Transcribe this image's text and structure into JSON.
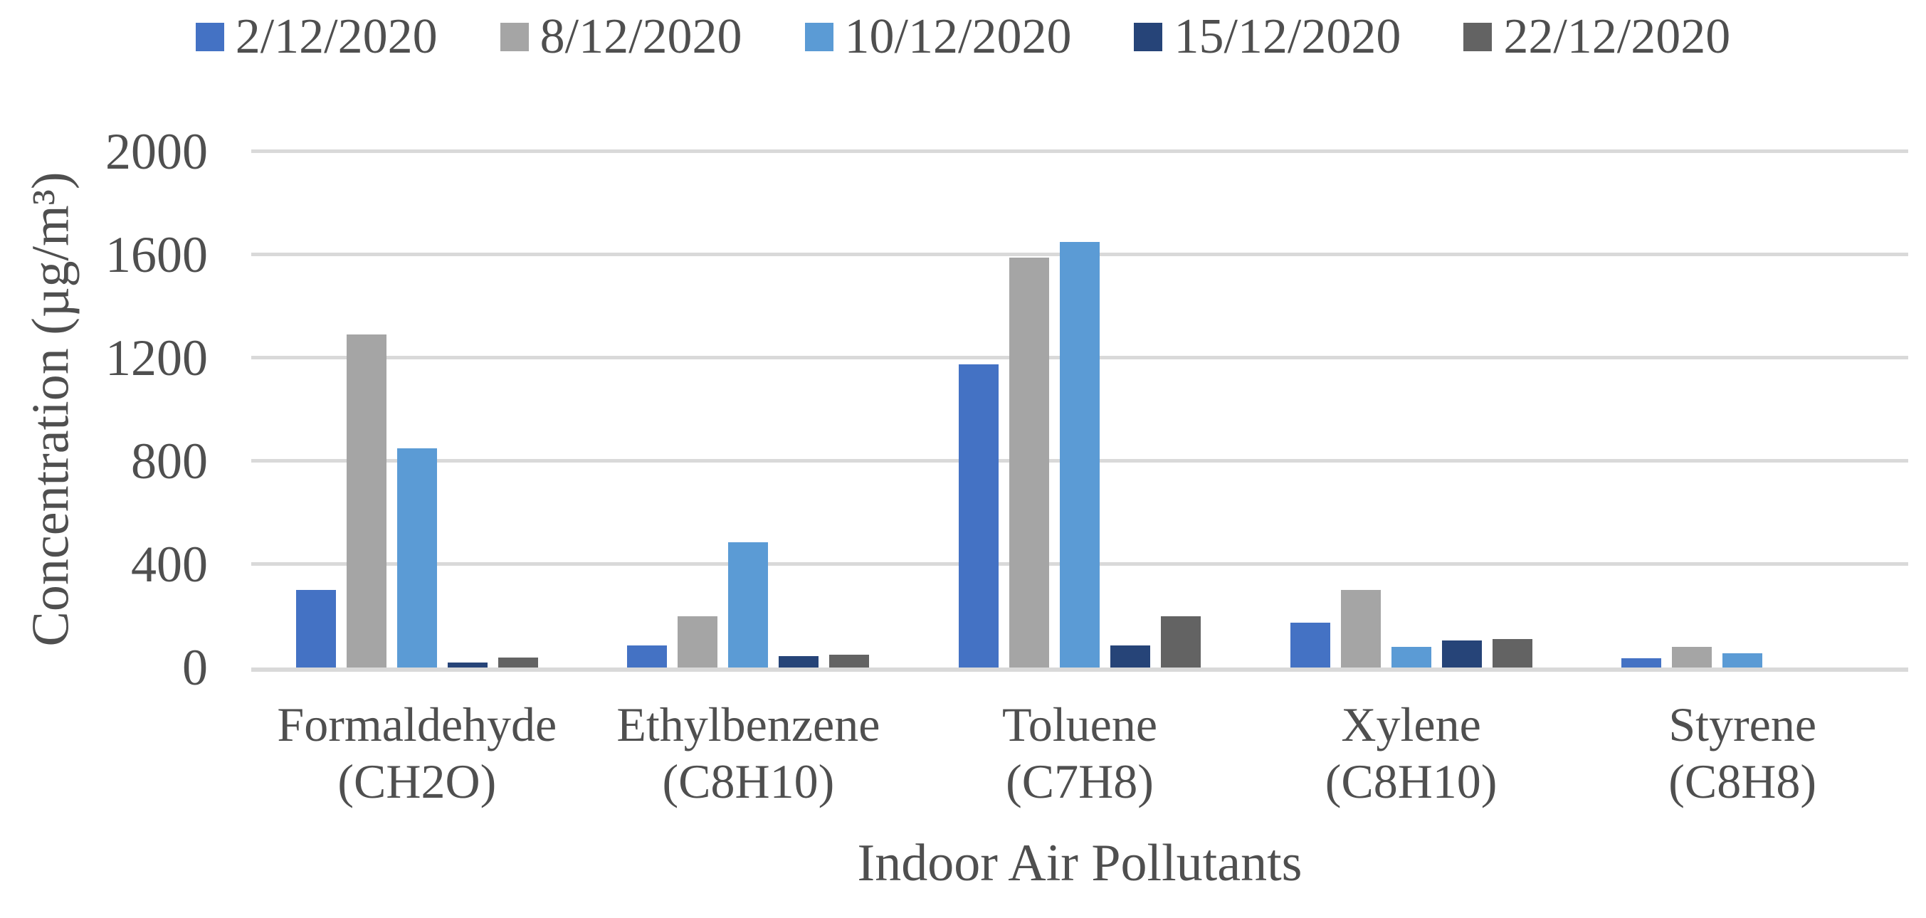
{
  "chart_data": {
    "type": "bar",
    "title": "",
    "xlabel": "Indoor Air Pollutants",
    "ylabel": "Concentration (µg/m³)",
    "ylim": [
      0,
      2000
    ],
    "yticks": [
      0,
      400,
      800,
      1200,
      1600,
      2000
    ],
    "grid": true,
    "legend_position": "top",
    "gridline_color": "#D9D9D9",
    "text_color": "#4f4f4f",
    "categories": [
      "Formaldehyde (CH2O)",
      "Ethylbenzene (C8H10)",
      "Toluene (C7H8)",
      "Xylene (C8H10)",
      "Styrene (C8H8)"
    ],
    "category_lines": [
      {
        "line1": "Formaldehyde",
        "line2": "(CH2O)"
      },
      {
        "line1": "Ethylbenzene",
        "line2": "(C8H10)"
      },
      {
        "line1": "Toluene",
        "line2": "(C7H8)"
      },
      {
        "line1": "Xylene",
        "line2": "(C8H10)"
      },
      {
        "line1": "Styrene",
        "line2": "(C8H8)"
      }
    ],
    "series": [
      {
        "name": "2/12/2020",
        "color": "#4472C4",
        "values": [
          300,
          85,
          1175,
          175,
          35
        ]
      },
      {
        "name": "8/12/2020",
        "color": "#A5A5A5",
        "values": [
          1290,
          200,
          1590,
          300,
          80
        ]
      },
      {
        "name": "10/12/2020",
        "color": "#5B9BD5",
        "values": [
          850,
          485,
          1650,
          80,
          55
        ]
      },
      {
        "name": "15/12/2020",
        "color": "#264478",
        "values": [
          20,
          45,
          85,
          105,
          0
        ]
      },
      {
        "name": "22/12/2020",
        "color": "#636363",
        "values": [
          40,
          50,
          200,
          110,
          0
        ]
      }
    ]
  }
}
